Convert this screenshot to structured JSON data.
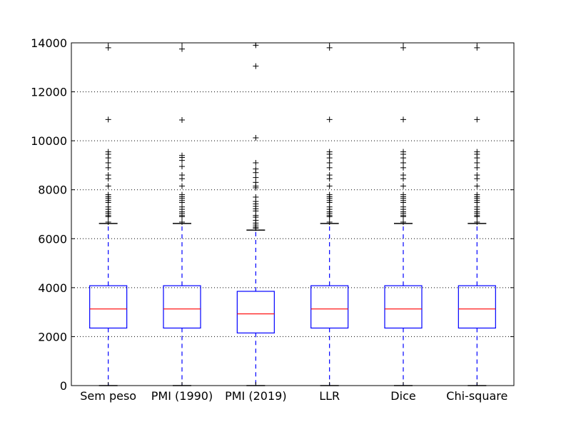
{
  "chart_data": {
    "type": "box",
    "title": "",
    "xlabel": "",
    "ylabel": "",
    "ylim": [
      0,
      14000
    ],
    "yticks": [
      0,
      2000,
      4000,
      6000,
      8000,
      10000,
      12000,
      14000
    ],
    "grid": "horizontal dotted",
    "colors": {
      "box": "#0000ff",
      "median": "#ff0000",
      "whisker": "#0000ff",
      "cap": "#000000",
      "flier": "#000000",
      "grid": "#000000"
    },
    "categories": [
      "Sem peso",
      "PMI (1990)",
      "PMI (2019)",
      "LLR",
      "Dice",
      "Chi-square"
    ],
    "boxes": [
      {
        "label": "Sem peso",
        "whisker_low": 0,
        "q1": 2350,
        "median": 3130,
        "q3": 4080,
        "whisker_high": 6620,
        "outliers": [
          13800,
          10870,
          9550,
          9450,
          9300,
          9100,
          8900,
          8600,
          8450,
          8150,
          7800,
          7720,
          7650,
          7560,
          7480,
          7300,
          7200,
          7100,
          7030,
          6950,
          6900,
          6680
        ]
      },
      {
        "label": "PMI (1990)",
        "whisker_low": 0,
        "q1": 2350,
        "median": 3130,
        "q3": 4080,
        "whisker_high": 6620,
        "outliers": [
          13750,
          10850,
          9400,
          9320,
          9200,
          8950,
          8600,
          8450,
          8150,
          7800,
          7720,
          7650,
          7560,
          7480,
          7300,
          7200,
          7100,
          7030,
          6950,
          6900,
          6680
        ]
      },
      {
        "label": "PMI (2019)",
        "whisker_low": 0,
        "q1": 2150,
        "median": 2930,
        "q3": 3850,
        "whisker_high": 6350,
        "outliers": [
          13900,
          13050,
          10120,
          9100,
          8850,
          8700,
          8500,
          8300,
          8150,
          8080,
          7700,
          7520,
          7420,
          7320,
          7220,
          7130,
          6950,
          6880,
          6750,
          6640,
          6560,
          6480,
          6430
        ]
      },
      {
        "label": "LLR",
        "whisker_low": 0,
        "q1": 2350,
        "median": 3130,
        "q3": 4080,
        "whisker_high": 6620,
        "outliers": [
          13800,
          10870,
          9550,
          9450,
          9300,
          9100,
          8900,
          8600,
          8450,
          8150,
          7800,
          7720,
          7650,
          7560,
          7480,
          7300,
          7200,
          7100,
          7030,
          6950,
          6900,
          6680
        ]
      },
      {
        "label": "Dice",
        "whisker_low": 0,
        "q1": 2350,
        "median": 3130,
        "q3": 4080,
        "whisker_high": 6620,
        "outliers": [
          13800,
          10870,
          9550,
          9450,
          9300,
          9100,
          8900,
          8600,
          8450,
          8150,
          7800,
          7720,
          7650,
          7560,
          7480,
          7300,
          7200,
          7100,
          7030,
          6950,
          6900,
          6680
        ]
      },
      {
        "label": "Chi-square",
        "whisker_low": 0,
        "q1": 2350,
        "median": 3130,
        "q3": 4080,
        "whisker_high": 6620,
        "outliers": [
          13800,
          10870,
          9550,
          9450,
          9300,
          9100,
          8900,
          8600,
          8450,
          8150,
          7800,
          7720,
          7650,
          7560,
          7480,
          7300,
          7200,
          7100,
          7030,
          6950,
          6900,
          6680
        ]
      }
    ]
  }
}
